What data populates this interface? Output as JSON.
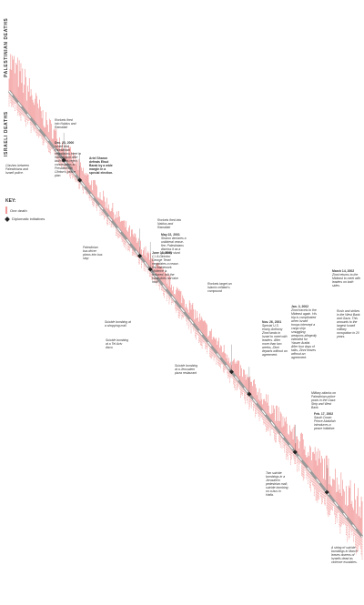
{
  "axis_labels": {
    "palestinian": "PALESTINIAN DEATHS",
    "israeli": "ISRAELI DEATHS"
  },
  "key": {
    "title": "KEY:",
    "one_death": "One death",
    "diplomatic": "Diplomatic initiatives"
  },
  "colors": {
    "death_line": "#f08a8a",
    "timeline": "#9a9a9a",
    "marker": "#222222"
  },
  "annotations": [
    {
      "id": "a1",
      "date": "",
      "text": "Clashes between Palestinians and Israeli police."
    },
    {
      "id": "a2",
      "date": "",
      "text": "Rockets fired into Nablus and Ramallah"
    },
    {
      "id": "a3",
      "date": "Dec. 23, 2000",
      "text": "Israeli and Palestinian negotiators meet in Washington after both sides reject concessions to President Bill Clinton's peace plan."
    },
    {
      "id": "a4",
      "date": "Ariel Sharon defeats Ehud Barak by a wide margin in a special election.",
      "text": ""
    },
    {
      "id": "a5",
      "date": "",
      "text": "Rockets fired into Nablus and Ramallah"
    },
    {
      "id": "a6",
      "date": "May 22, 2001",
      "text": "Sharon declares a unilateral cease-fire; Palestinians dismiss it as a publicity stunt."
    },
    {
      "id": "a7",
      "date": "June 13, 2001",
      "text": "C.I.A Director George Tenet negotiates a cease-fire framework. Violence is reduced, but the truce does not take hold."
    },
    {
      "id": "a8",
      "date": "",
      "text": "Palestinian bus driver plows into bus stop"
    },
    {
      "id": "a9",
      "date": "",
      "text": "Rockets target an Islamic militant's compound"
    },
    {
      "id": "a10",
      "date": "",
      "text": "Suicide bombing at a shopping mall"
    },
    {
      "id": "a11",
      "date": "",
      "text": "Suicide bombing at a Tel Aviv disco"
    },
    {
      "id": "a12",
      "date": "",
      "text": "Suicide bombing at a Jerusalem pizza restaurant"
    },
    {
      "id": "a13",
      "date": "Nov. 26, 2001",
      "text": "Special U.S. envoy Anthony Zinni lands in Israel to meet with leaders. After more than two weeks, Zinni departs without an agreement."
    },
    {
      "id": "a14",
      "date": "Jan. 3, 2002",
      "text": "Zinni travels to the Mideast again. His trip is complicated when Israeli troops intercept a cargo ship smuggling weapons allegedly intended for Yasser Arafat. After four days of talks, Zinni leaves without an agreement."
    },
    {
      "id": "a15",
      "date": "March 14, 2002",
      "text": "Zinni returns to the Mideast to meet with leaders on both sides."
    },
    {
      "id": "a16",
      "date": "",
      "text": "Rush and strikes in the West Bank and Gaza. This amounts to the largest Israeli military occupation in 20 years."
    },
    {
      "id": "a17",
      "date": "",
      "text": "Military attacks on Palestinian police posts in the Gaza Strip and West Bank"
    },
    {
      "id": "a18",
      "date": "Feb. 17, 2002",
      "text": "Saudi Crown Prince Abdullah introduces a peace initiative."
    },
    {
      "id": "a19",
      "date": "",
      "text": "Two suicide bombings in a Jerusalem pedestrian mall; suicide bombing on a bus in Haifa."
    },
    {
      "id": "a20",
      "date": "",
      "text": "A string of suicide bombings in March leaves dozens of Israelis dead as violence escalates."
    }
  ],
  "chart_data": {
    "type": "timeline-bar",
    "description_axis": "Time runs diagonally from top-left to bottom-right; Palestinian deaths extend above the timeline, Israeli deaths below.",
    "markers": [
      {
        "label": "Dec. 23, 2000",
        "t": 0.155
      },
      {
        "label": "Ariel Sharon election",
        "t": 0.2
      },
      {
        "label": "May 22, 2001",
        "t": 0.37
      },
      {
        "label": "June 13, 2001",
        "t": 0.4
      },
      {
        "label": "Nov. 26, 2001",
        "t": 0.63
      },
      {
        "label": "Jan. 3, 2002",
        "t": 0.68
      },
      {
        "label": "Feb. 17, 2002",
        "t": 0.81
      },
      {
        "label": "March 14, 2002",
        "t": 0.9
      }
    ],
    "density_profile": [
      {
        "t": 0.0,
        "pal": 34,
        "isr": 12
      },
      {
        "t": 0.05,
        "pal": 30,
        "isr": 12
      },
      {
        "t": 0.1,
        "pal": 18,
        "isr": 9
      },
      {
        "t": 0.2,
        "pal": 14,
        "isr": 7
      },
      {
        "t": 0.3,
        "pal": 13,
        "isr": 8
      },
      {
        "t": 0.4,
        "pal": 12,
        "isr": 8
      },
      {
        "t": 0.5,
        "pal": 14,
        "isr": 10
      },
      {
        "t": 0.6,
        "pal": 13,
        "isr": 11
      },
      {
        "t": 0.7,
        "pal": 15,
        "isr": 12
      },
      {
        "t": 0.8,
        "pal": 18,
        "isr": 14
      },
      {
        "t": 0.9,
        "pal": 26,
        "isr": 18
      },
      {
        "t": 1.0,
        "pal": 32,
        "isr": 20
      }
    ],
    "xlabel": "",
    "ylabel": ""
  }
}
